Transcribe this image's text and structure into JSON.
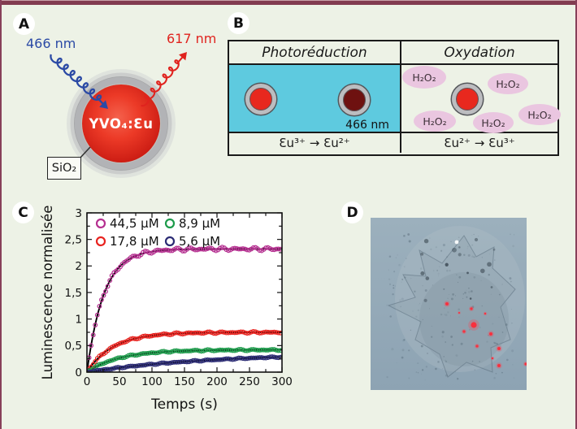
{
  "frame": {
    "accent_bar_color": "#823c50",
    "background_color": "#edf2e6"
  },
  "panel_a": {
    "label": "A",
    "excitation_label": "466 nm",
    "emission_label": "617 nm",
    "excitation_color": "#2b4aa5",
    "emission_color": "#e0231e",
    "particle_core_label": "YVO₄:Ɛu",
    "shell_label": "SiO₂"
  },
  "panel_b": {
    "label": "B",
    "header_left": "Photoréduction",
    "header_right": "Oxydation",
    "beam_label": "466 nm",
    "reaction_left": "Ɛu³⁺ → Ɛu²⁺",
    "reaction_right": "Ɛu²⁺ → Ɛu³⁺",
    "molecule_label": "H₂O₂",
    "molecule_ellipses": [
      [
        520,
        95,
        27,
        14
      ],
      [
        623,
        103,
        25,
        13
      ],
      [
        533,
        149,
        26,
        13
      ],
      [
        605,
        151,
        25,
        13
      ],
      [
        662,
        141,
        26,
        13
      ]
    ],
    "photoreduction_bg": "#5ecadf",
    "molecule_bg": "#eac6e0"
  },
  "panel_c": {
    "label": "C"
  },
  "panel_d": {
    "label": "D",
    "red_dot_color": "#f8303e",
    "red_dots": [
      [
        94,
        106,
        2
      ],
      [
        124,
        112,
        1.6
      ],
      [
        141,
        118,
        1.2
      ],
      [
        127,
        132,
        3.6
      ],
      [
        115,
        140,
        1.6
      ],
      [
        148,
        143,
        2
      ],
      [
        131,
        158,
        1.6
      ],
      [
        158,
        161,
        2
      ],
      [
        150,
        173,
        1.2
      ],
      [
        158,
        182,
        2
      ],
      [
        191,
        180,
        1.6
      ],
      [
        109,
        117,
        1
      ]
    ]
  },
  "chart_data": {
    "type": "scatter",
    "model": "y(t) = plateau × (1 − exp(−t/tau))",
    "xlabel": "Temps (s)",
    "ylabel": "Luminescence normalisée",
    "xlim": [
      0,
      300
    ],
    "ylim": [
      0,
      3
    ],
    "xticks": {
      "values": [
        0,
        50,
        100,
        150,
        200,
        250,
        300
      ],
      "labels": [
        "0",
        "50",
        "100",
        "150",
        "200",
        "250",
        "300"
      ]
    },
    "yticks": {
      "values": [
        0,
        0.5,
        1,
        1.5,
        2,
        2.5,
        3
      ],
      "labels": [
        "0",
        "0,5",
        "1",
        "1,5",
        "2",
        "2,5",
        "3"
      ]
    },
    "minor_tick_x": 25,
    "minor_tick_y": 0.25,
    "grid": false,
    "legend_position": "top-left-inside",
    "fit_color": "#000000",
    "series": [
      {
        "name": "44,5 µM",
        "color": "#b52f90",
        "plateau": 2.32,
        "tau": 26,
        "noise": 0.035
      },
      {
        "name": "17,8 µM",
        "color": "#e8231f",
        "plateau": 0.75,
        "tau": 40,
        "noise": 0.018
      },
      {
        "name": "8,9 µM",
        "color": "#1d9b4b",
        "plateau": 0.42,
        "tau": 50,
        "noise": 0.015
      },
      {
        "name": "5,6 µM",
        "color": "#2b2b74",
        "plateau": 0.36,
        "tau": 190,
        "noise": 0.012
      }
    ]
  }
}
